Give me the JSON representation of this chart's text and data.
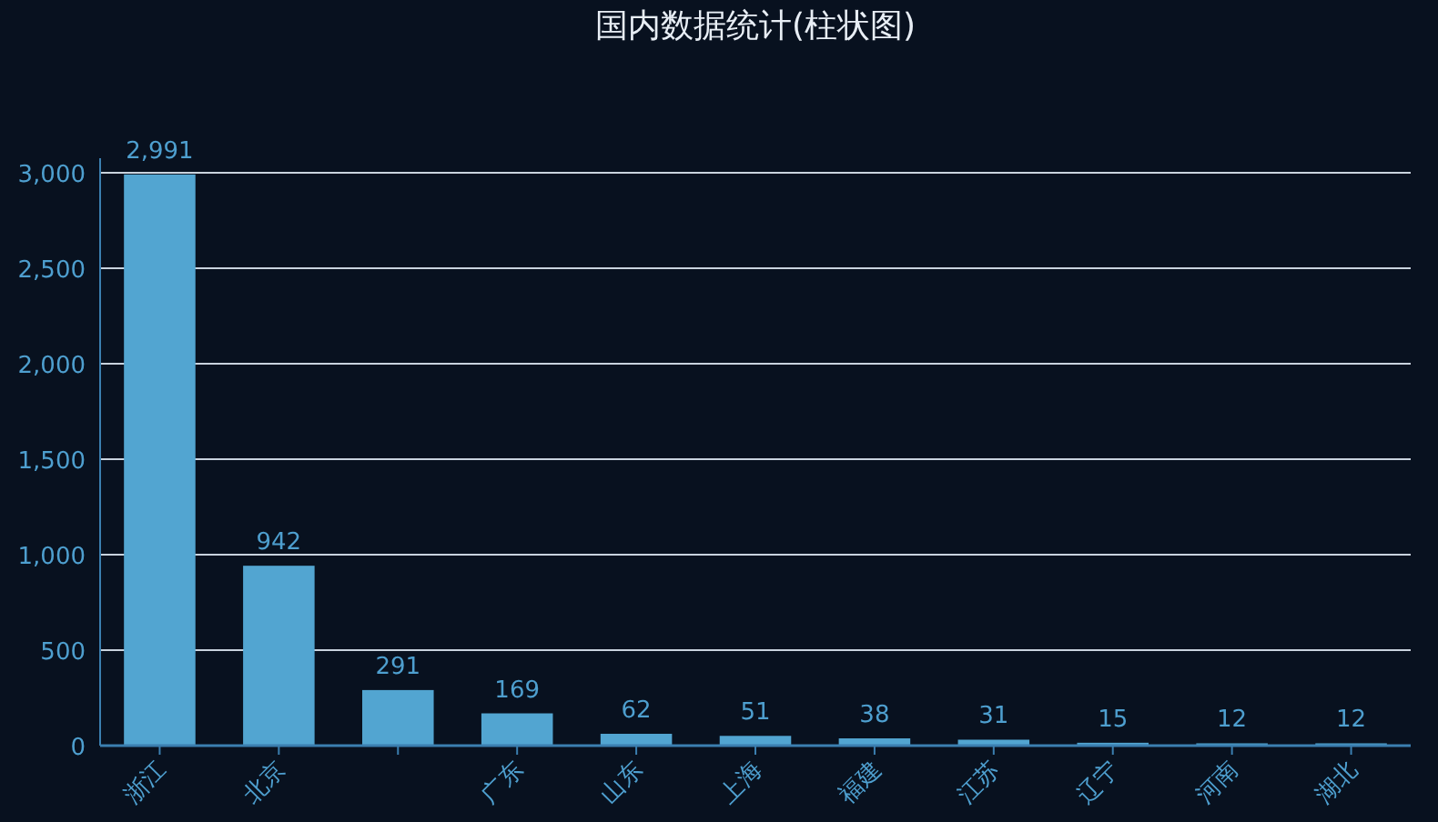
{
  "chart_data": {
    "type": "bar",
    "title": "国内数据统计(柱状图)",
    "categories": [
      "浙江",
      "北京",
      null,
      "广东",
      "山东",
      "上海",
      "福建",
      "江苏",
      "辽宁",
      "河南",
      "湖北"
    ],
    "values": [
      2991,
      942,
      291,
      169,
      62,
      51,
      38,
      31,
      15,
      12,
      12
    ],
    "color": "#52a5d1",
    "ylim": [
      0,
      3000
    ],
    "yticks": [
      {
        "value": 0,
        "label": "0"
      },
      {
        "value": 500,
        "label": "500"
      },
      {
        "value": 1000,
        "label": "1,000"
      },
      {
        "value": 1500,
        "label": "1,500"
      },
      {
        "value": 2000,
        "label": "2,000"
      },
      {
        "value": 2500,
        "label": "2,500"
      },
      {
        "value": 3000,
        "label": "3,000"
      }
    ],
    "value_labels": [
      "2,991",
      "942",
      "291",
      "169",
      "62",
      "51",
      "38",
      "31",
      "15",
      "12",
      "12"
    ],
    "grid": "y"
  }
}
